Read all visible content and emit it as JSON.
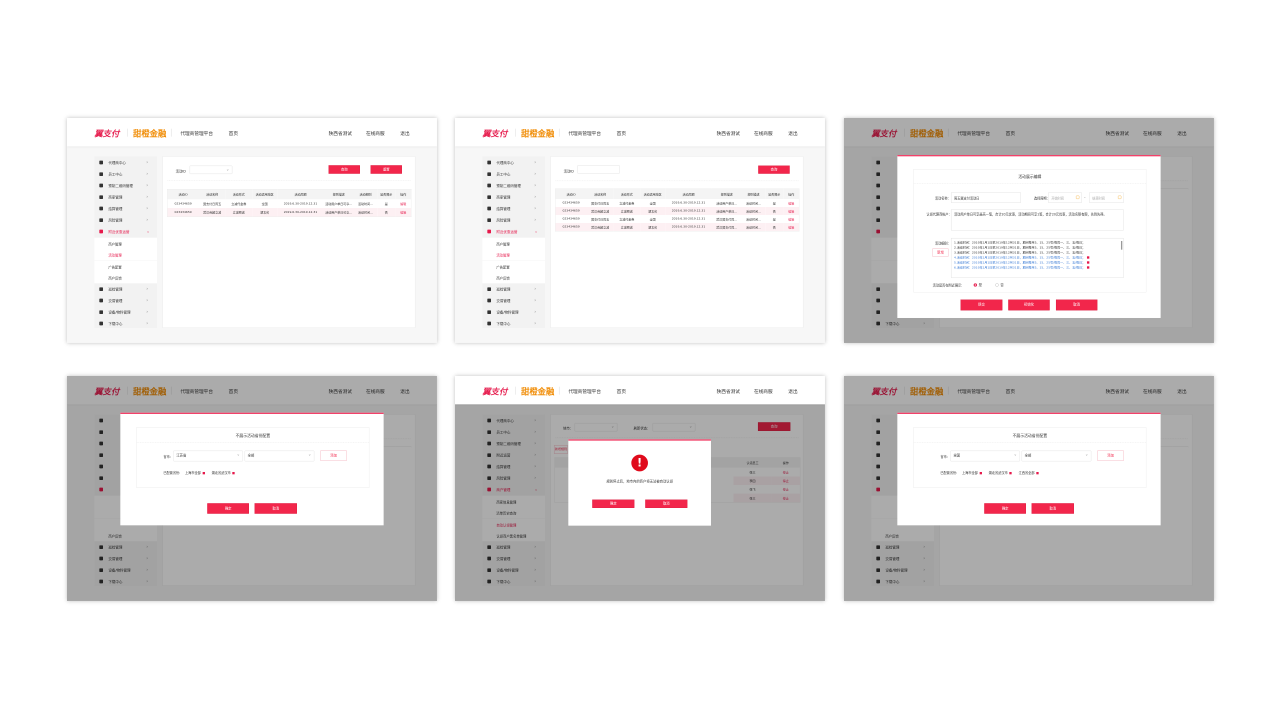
{
  "header": {
    "logo_primary": "翼支付",
    "logo_secondary": "甜橙金融",
    "platform": "代理商管理平台",
    "home": "首页",
    "user": "陕西省测试",
    "service": "在线商服",
    "logout": "退出"
  },
  "colors": {
    "accent": "#f2264b",
    "link": "#3a7bd5"
  },
  "sidebars": {
    "activity": {
      "items": [
        {
          "label": "代理商中心",
          "icon": "user-icon"
        },
        {
          "label": "员工中心",
          "icon": "shield-icon"
        },
        {
          "label": "预制二维码管理",
          "icon": "qrcode-icon"
        },
        {
          "label": "商家管理",
          "icon": "store-icon"
        },
        {
          "label": "结算管理",
          "icon": "settlement-icon"
        },
        {
          "label": "风险管理",
          "icon": "risk-icon"
        },
        {
          "label": "附近优惠运营",
          "icon": "chart-icon",
          "open": true,
          "subitems": [
            {
              "label": "商户管理"
            },
            {
              "label": "活动管理",
              "active": true
            },
            {
              "label": "广告配置"
            },
            {
              "label": "商户反馈"
            }
          ]
        },
        {
          "label": "巡检管理",
          "icon": "inspect-icon"
        },
        {
          "label": "交易管理",
          "icon": "transaction-icon"
        },
        {
          "label": "设备/物料管理",
          "icon": "device-icon"
        },
        {
          "label": "下载中心",
          "icon": "download-icon"
        }
      ]
    },
    "merchant": {
      "items": [
        {
          "label": "代理商中心",
          "icon": "user-icon"
        },
        {
          "label": "员工中心",
          "icon": "shield-icon"
        },
        {
          "label": "预制二维码管理",
          "icon": "qrcode-icon"
        },
        {
          "label": "附近运营",
          "icon": "chart-icon"
        },
        {
          "label": "结算管理",
          "icon": "settlement-icon"
        },
        {
          "label": "风险管理",
          "icon": "risk-icon"
        },
        {
          "label": "商户管理",
          "icon": "store-icon",
          "open": true,
          "subitems": [
            {
              "label": "商家信息管理"
            },
            {
              "label": "清单历史查询"
            },
            {
              "label": "自动认领管理",
              "active": true
            },
            {
              "label": "认领商户黑名单管理"
            }
          ]
        },
        {
          "label": "巡检管理",
          "icon": "inspect-icon"
        },
        {
          "label": "交易管理",
          "icon": "transaction-icon"
        },
        {
          "label": "设备/物料管理",
          "icon": "device-icon"
        },
        {
          "label": "下载中心",
          "icon": "download-icon"
        }
      ]
    }
  },
  "screens": [
    {
      "filter_label": "活动ID",
      "filter_value": "",
      "search_label": "查询",
      "reset_label": "重置",
      "columns": [
        "活动ID",
        "活动名称",
        "活动形式",
        "活动适用地区",
        "活动周期",
        "规则描述",
        "活动细则",
        "是否展示",
        "操作"
      ],
      "rows": [
        [
          "023434659",
          "翼支付日周五",
          "立减代金券",
          "全国",
          "2019.6.30-2019.12.31",
          "活动用户单日可享…",
          "活动时间…",
          "是",
          "编辑"
        ],
        [
          "023434659",
          "武汉商超立减",
          "立减预送",
          "湖北省",
          "2019.6.30-2019.12.31",
          "活动用户单日可享…",
          "活动时间…",
          "否",
          "编辑"
        ]
      ]
    },
    {
      "filter_label": "活动ID",
      "filter_value": "",
      "search_label": "查询",
      "columns": [
        "活动ID",
        "活动名称",
        "活动形式",
        "活动适用地区",
        "活动周期",
        "规则描述",
        "规则描述",
        "是否展示",
        "操作"
      ],
      "rows": [
        [
          "023434659",
          "翼支付日周五",
          "立减代金券",
          "全国",
          "2019.6.30-2019.12.31",
          "活动用户单日…",
          "活动时间…",
          "是",
          "编辑"
        ],
        [
          "023434659",
          "武汉商超立减",
          "立减预送",
          "湖北省",
          "2019.6.30-2019.12.31",
          "活动用户单日…",
          "活动时间…",
          "否",
          "编辑"
        ],
        [
          "023434659",
          "翼支付日周五",
          "立减代金券",
          "全国",
          "2019.6.30-2019.12.31",
          "武汉翼支付周…",
          "活动时间…",
          "是",
          "编辑"
        ],
        [
          "023434659",
          "武汉商超立减",
          "立减预送",
          "湖北省",
          "2019.6.30-2019.12.31",
          "武汉翼支付周…",
          "活动时间…",
          "否",
          "编辑"
        ]
      ]
    },
    {
      "edit_modal": {
        "title": "活动展示编辑",
        "name_label": "活动名称:",
        "name_value": "周五翼支付活动日",
        "period_label": "选择周期:",
        "start_placeholder": "开始时间",
        "end_placeholder": "结束时间",
        "period_separator": "-",
        "account_label": "认领代理商帐户:",
        "account_value": "活动用户单日可享最高一笔，合计20元优惠，活动期间可享1笔，合计20元优惠，活动名额有限，先到先得。",
        "rules_label": "活动细则:",
        "add_label": "新增",
        "rules": [
          {
            "text": "1.活动时间：2019年1月1日至2019年12月31日，期间每月5、15、25号/每周一、三、五/每日；",
            "editable": false
          },
          {
            "text": "2.活动时间：2019年1月1日至2019年12月31日，期间每月5、15、25号/每周一、三、五/每日；",
            "editable": false
          },
          {
            "text": "3.活动时间：2019年1月1日至2019年12月31日，期间每月5、15、25号/每周一、三、五/每日；",
            "editable": false
          },
          {
            "text": "4.活动时间：2019年1月1日至2019年12月31日，期间每月5、15、25号/每周一、三、五/每日；",
            "editable": true
          },
          {
            "text": "5.活动时间：2019年1月1日至2019年12月31日，期间每月5、15、25号/每周一、三、五/每日；",
            "editable": true
          },
          {
            "text": "6.活动时间：2019年1月1日至2019年12月31日，期间每月5、15、25号/每周一、三、五/每日；",
            "editable": true
          }
        ],
        "show_label": "活动是否在附近展示:",
        "show_yes": "是",
        "show_no": "否",
        "show_value": "是",
        "submit_label": "提交",
        "init_label": "初始化",
        "cancel_label": "取消"
      }
    },
    {
      "province_modal": {
        "title": "不展示活动省份配置",
        "province_label": "省市:",
        "province_value": "江苏省",
        "city_value": "全部",
        "add_label": "添加",
        "configured_label": "已配置省份:",
        "tags": [
          "上海市全部",
          "湖北省武汉市"
        ],
        "ok_label": "确定",
        "cancel_label": "取消"
      }
    },
    {
      "city_label": "地市:",
      "city_value": "",
      "status_label": "刷新状态:",
      "status_value": "",
      "search_label": "查询",
      "add_label": "新增规则",
      "columns": [
        "认领员工",
        "操作"
      ],
      "rows": [
        [
          "张三",
          "停止"
        ],
        [
          "李四",
          "停止"
        ],
        [
          "张飞",
          "停止"
        ],
        [
          "张三",
          "停止"
        ]
      ],
      "alert": {
        "icon": "exclamation-icon",
        "message": "规则停止后，地市内的商户将无法被自动认领",
        "ok_label": "确定",
        "cancel_label": "取消"
      }
    },
    {
      "province_modal": {
        "title": "不展示活动省份配置",
        "province_label": "省市:",
        "province_value": "全国",
        "city_value": "全部",
        "add_label": "添加",
        "configured_label": "已配置省份:",
        "tags": [
          "上海市全部",
          "湖北省武汉市",
          "江西省全部"
        ],
        "ok_label": "确定",
        "cancel_label": "取消"
      }
    }
  ]
}
